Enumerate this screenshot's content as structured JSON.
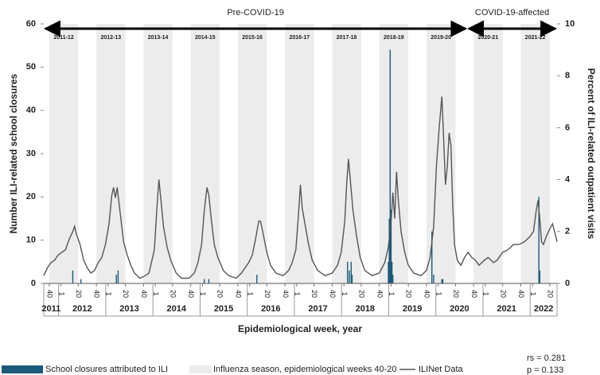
{
  "chart_data": {
    "type": "combo",
    "xlabel": "Epidemiological week, year",
    "ylabel": "Number ILI-related school closures",
    "y2label": "Percent of ILI-related outpatient visits",
    "annotations": [
      "rs = 0.281",
      "p = 0.133"
    ],
    "xlim": [
      0,
      566
    ],
    "xticks": [
      {
        "value": 6,
        "label": "40"
      },
      {
        "value": 19,
        "label": "1"
      },
      {
        "value": 38,
        "label": "20"
      },
      {
        "value": 58,
        "label": "40"
      },
      {
        "value": 71,
        "label": "1"
      },
      {
        "value": 90,
        "label": "20"
      },
      {
        "value": 110,
        "label": "40"
      },
      {
        "value": 123,
        "label": "1"
      },
      {
        "value": 142,
        "label": "20"
      },
      {
        "value": 162,
        "label": "40"
      },
      {
        "value": 175,
        "label": "1"
      },
      {
        "value": 194,
        "label": "20"
      },
      {
        "value": 214,
        "label": "40"
      },
      {
        "value": 227,
        "label": "1"
      },
      {
        "value": 246,
        "label": "20"
      },
      {
        "value": 266,
        "label": "40"
      },
      {
        "value": 279,
        "label": "1"
      },
      {
        "value": 298,
        "label": "20"
      },
      {
        "value": 318,
        "label": "40"
      },
      {
        "value": 331,
        "label": "1"
      },
      {
        "value": 350,
        "label": "20"
      },
      {
        "value": 370,
        "label": "40"
      },
      {
        "value": 383,
        "label": "1"
      },
      {
        "value": 402,
        "label": "20"
      },
      {
        "value": 422,
        "label": "40"
      },
      {
        "value": 435,
        "label": "1"
      },
      {
        "value": 454,
        "label": "20"
      },
      {
        "value": 474,
        "label": "40"
      },
      {
        "value": 487,
        "label": "1"
      },
      {
        "value": 506,
        "label": "20"
      },
      {
        "value": 526,
        "label": "40"
      },
      {
        "value": 539,
        "label": "1"
      },
      {
        "value": 558,
        "label": "20"
      }
    ],
    "year_labels": [
      "2011",
      "2012",
      "2013",
      "2014",
      "2015",
      "2016",
      "2017",
      "2018",
      "2019",
      "2020",
      "2021",
      "2022"
    ],
    "ylim": [
      0,
      60
    ],
    "yticks": [
      0,
      10,
      20,
      30,
      40,
      50,
      60
    ],
    "y2lim": [
      0,
      10
    ],
    "y2ticks": [
      0,
      2,
      4,
      6,
      8,
      10
    ],
    "eras": [
      {
        "label": "Pre-COVID-19",
        "start": 0,
        "end": 467
      },
      {
        "label": "COVID-19-affected",
        "start": 467,
        "end": 566
      }
    ],
    "seasons": {
      "name": "Influenza season, epidemiological weeks 40-20",
      "color": "#ececec",
      "labels": [
        "2011-12",
        "2012-13",
        "2013-14",
        "2014-15",
        "2015-16",
        "2016-17",
        "2017-18",
        "2018-19",
        "2019-20",
        "2020-21",
        "2021-22"
      ],
      "start": [
        6,
        58,
        110,
        162,
        214,
        266,
        318,
        370,
        422,
        474,
        526
      ],
      "end": [
        38,
        90,
        142,
        194,
        246,
        298,
        350,
        402,
        454,
        506,
        558
      ]
    },
    "series": [
      {
        "name": "School closures attributed to ILI",
        "type": "bar",
        "color": "#1b5a78",
        "x": [
          32,
          41,
          80,
          82,
          177,
          182,
          235,
          335,
          337,
          339,
          340,
          380,
          381,
          382,
          383,
          384,
          385,
          428,
          430,
          439,
          440,
          546,
          547
        ],
        "values": [
          3,
          1,
          2,
          3,
          1,
          1,
          2,
          5,
          3,
          5,
          2,
          5,
          15,
          54,
          17,
          5,
          2,
          12,
          2,
          1,
          1,
          20,
          3
        ]
      },
      {
        "name": "ILINet Data",
        "type": "line",
        "axis": "y2",
        "color": "#555555",
        "x": [
          0,
          4,
          8,
          12,
          16,
          20,
          24,
          28,
          32,
          34,
          36,
          40,
          44,
          48,
          52,
          56,
          60,
          64,
          68,
          72,
          75,
          77,
          79,
          81,
          84,
          88,
          92,
          96,
          100,
          106,
          112,
          116,
          118,
          122,
          125,
          127,
          129,
          132,
          136,
          140,
          146,
          152,
          160,
          166,
          170,
          174,
          177,
          180,
          182,
          185,
          188,
          192,
          198,
          204,
          212,
          218,
          222,
          226,
          230,
          234,
          237,
          239,
          242,
          246,
          250,
          256,
          264,
          270,
          274,
          278,
          281,
          283,
          285,
          288,
          292,
          296,
          302,
          310,
          318,
          324,
          328,
          332,
          334,
          336,
          338,
          341,
          345,
          349,
          354,
          362,
          370,
          376,
          380,
          383,
          385,
          387,
          389,
          391,
          394,
          398,
          402,
          408,
          416,
          422,
          426,
          430,
          433,
          436,
          439,
          441,
          443,
          445,
          447,
          449,
          451,
          453,
          456,
          460,
          464,
          468,
          472,
          476,
          480,
          486,
          490,
          496,
          500,
          506,
          512,
          518,
          524,
          530,
          536,
          540,
          543,
          545,
          547,
          549,
          551,
          554,
          558,
          561,
          564,
          566
        ],
        "values": [
          0.3,
          0.6,
          0.8,
          0.9,
          1.1,
          1.2,
          1.3,
          1.7,
          2.0,
          2.2,
          1.9,
          1.5,
          0.9,
          0.6,
          0.4,
          0.5,
          0.8,
          1.0,
          1.5,
          2.3,
          3.4,
          3.7,
          3.3,
          3.7,
          2.8,
          1.6,
          1.1,
          0.7,
          0.4,
          0.2,
          0.3,
          0.4,
          0.7,
          1.3,
          3.0,
          4.0,
          3.3,
          2.2,
          1.4,
          0.9,
          0.4,
          0.2,
          0.2,
          0.4,
          0.8,
          1.5,
          2.8,
          3.7,
          3.4,
          2.4,
          1.5,
          1.0,
          0.5,
          0.3,
          0.2,
          0.4,
          0.6,
          0.8,
          1.1,
          1.8,
          2.4,
          2.4,
          1.9,
          1.2,
          0.7,
          0.4,
          0.3,
          0.5,
          0.8,
          1.3,
          2.7,
          3.8,
          2.9,
          2.3,
          1.5,
          0.9,
          0.5,
          0.3,
          0.4,
          0.7,
          1.2,
          2.4,
          3.8,
          4.8,
          4.0,
          2.8,
          1.8,
          1.0,
          0.5,
          0.3,
          0.4,
          0.8,
          1.4,
          2.4,
          3.5,
          2.5,
          4.3,
          3.2,
          2.0,
          1.2,
          0.7,
          0.4,
          0.3,
          0.5,
          1.0,
          2.2,
          4.5,
          6.0,
          7.2,
          5.5,
          3.8,
          4.5,
          5.8,
          5.3,
          3.0,
          1.5,
          0.9,
          0.7,
          1.0,
          1.2,
          1.0,
          0.9,
          0.7,
          0.9,
          1.0,
          0.8,
          0.9,
          1.2,
          1.3,
          1.5,
          1.5,
          1.6,
          1.8,
          2.0,
          2.8,
          3.2,
          2.5,
          1.6,
          1.5,
          1.8,
          2.1,
          2.3,
          1.9,
          1.6
        ]
      }
    ]
  }
}
